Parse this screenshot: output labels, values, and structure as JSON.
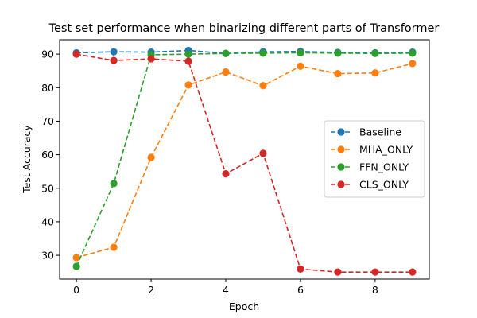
{
  "chart_data": {
    "type": "line",
    "title": "Test set performance when binarizing different parts of Transformer",
    "xlabel": "Epoch",
    "ylabel": "Test Accuracy",
    "xlim": [
      -0.45,
      9.45
    ],
    "ylim": [
      22.9,
      94.3
    ],
    "xticks": [
      0,
      2,
      4,
      6,
      8
    ],
    "yticks": [
      30,
      40,
      50,
      60,
      70,
      80,
      90
    ],
    "grid": false,
    "legend_position": "center-right",
    "x": [
      0,
      1,
      2,
      3,
      4,
      5,
      6,
      7,
      8,
      9
    ],
    "series": [
      {
        "name": "Baseline",
        "color": "#1f77b4",
        "line_style": "dashed",
        "marker": "circle",
        "values": [
          90.4,
          90.7,
          90.6,
          91.1,
          90.2,
          90.7,
          90.8,
          90.5,
          90.4,
          90.6
        ]
      },
      {
        "name": "MHA_ONLY",
        "color": "#ff7f0e",
        "line_style": "dashed",
        "marker": "circle",
        "values": [
          29.3,
          32.4,
          59.2,
          80.8,
          84.7,
          80.6,
          86.4,
          84.2,
          84.4,
          87.2
        ]
      },
      {
        "name": "FFN_ONLY",
        "color": "#2ca02c",
        "line_style": "dashed",
        "marker": "circle",
        "values": [
          26.7,
          51.4,
          89.8,
          90.0,
          90.2,
          90.3,
          90.4,
          90.3,
          90.2,
          90.3
        ]
      },
      {
        "name": "CLS_ONLY",
        "color": "#d62728",
        "line_style": "dashed",
        "marker": "circle",
        "values": [
          90.0,
          88.1,
          88.6,
          87.9,
          54.3,
          60.4,
          25.9,
          25.0,
          25.0,
          25.0
        ]
      }
    ]
  }
}
